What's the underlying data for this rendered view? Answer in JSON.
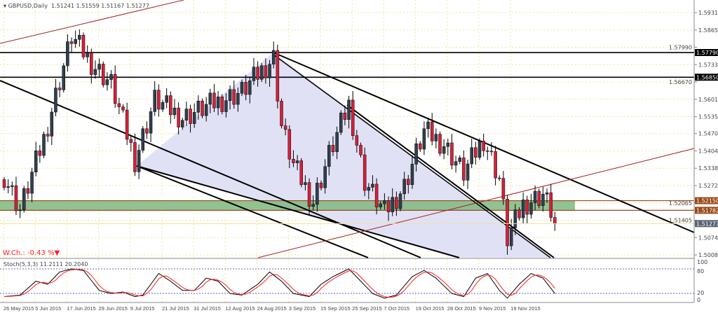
{
  "header": {
    "symbol": "GBPUSD,Daily",
    "ohlc": "1.51241 1.51559 1.51167 1.51277"
  },
  "weekly_change": {
    "label": "W.Ch.: -0.43 %",
    "arrow": "▼",
    "color": "#ff2020"
  },
  "stoch": {
    "label": "Stoch(5,3,3) 11.2111 20.2040",
    "levels": [
      "100",
      "80",
      "20",
      "0"
    ]
  },
  "colors": {
    "bull": "#2f3f4f",
    "bear": "#d8203a",
    "zone": "#7fb77f",
    "sr": "#9a4a1a",
    "channel": "#a02020",
    "shade": "#dcdcf4"
  },
  "chart_data": {
    "type": "candlestick",
    "title": "GBPUSD,Daily",
    "ylim": [
      1.498,
      1.598
    ],
    "price_ticks": [
      "1.59310",
      "1.58650",
      "1.57990",
      "1.57330",
      "1.56670",
      "1.56010",
      "1.55350",
      "1.54705",
      "1.54045",
      "1.53385",
      "1.52725",
      "1.52065",
      "1.51405",
      "1.50745",
      "1.50085"
    ],
    "date_ticks": [
      "26 May 2015",
      "5 Jun 2015",
      "17 Jun 2015",
      "29 Jun 2015",
      "9 Jul 2015",
      "21 Jul 2015",
      "31 Jul 2015",
      "12 Aug 2015",
      "24 Aug 2015",
      "3 Sep 2015",
      "15 Sep 2015",
      "25 Sep 2015",
      "7 Oct 2015",
      "19 Oct 2015",
      "28 Oct 2015",
      "9 Nov 2015",
      "19 Nov 2015"
    ],
    "bar_count": 140,
    "close_keypoints": [
      [
        0,
        1.531
      ],
      [
        4,
        1.518
      ],
      [
        10,
        1.545
      ],
      [
        17,
        1.584
      ],
      [
        22,
        1.574
      ],
      [
        27,
        1.566
      ],
      [
        33,
        1.537
      ],
      [
        38,
        1.56
      ],
      [
        45,
        1.553
      ],
      [
        52,
        1.558
      ],
      [
        60,
        1.563
      ],
      [
        68,
        1.576
      ],
      [
        70,
        1.55
      ],
      [
        73,
        1.535
      ],
      [
        78,
        1.521
      ],
      [
        82,
        1.539
      ],
      [
        87,
        1.558
      ],
      [
        91,
        1.529
      ],
      [
        96,
        1.517
      ],
      [
        101,
        1.527
      ],
      [
        106,
        1.548
      ],
      [
        111,
        1.543
      ],
      [
        116,
        1.532
      ],
      [
        121,
        1.545
      ],
      [
        125,
        1.53
      ],
      [
        127,
        1.507
      ],
      [
        131,
        1.52
      ],
      [
        136,
        1.524
      ],
      [
        138,
        1.5178
      ],
      [
        139,
        1.51277
      ]
    ],
    "horizontal_levels": [
      {
        "price": 1.5779,
        "label": "1.57790",
        "color": "#000000"
      },
      {
        "price": 1.5685,
        "label": "1.56850",
        "color": "#000000"
      },
      {
        "price": 1.5215,
        "label": "1.52150",
        "color": "#9a4a1a"
      },
      {
        "price": 1.51782,
        "label": "1.51782",
        "color": "#9a4a1a"
      }
    ],
    "current_price": {
      "price": 1.51277,
      "label": "1.51277"
    },
    "stoch_k_keypoints": [
      [
        0,
        10
      ],
      [
        4,
        15
      ],
      [
        8,
        60
      ],
      [
        11,
        50
      ],
      [
        14,
        90
      ],
      [
        17,
        100
      ],
      [
        20,
        95
      ],
      [
        24,
        30
      ],
      [
        27,
        20
      ],
      [
        30,
        25
      ],
      [
        33,
        10
      ],
      [
        35,
        15
      ],
      [
        39,
        85
      ],
      [
        42,
        60
      ],
      [
        45,
        30
      ],
      [
        48,
        30
      ],
      [
        51,
        70
      ],
      [
        54,
        60
      ],
      [
        57,
        20
      ],
      [
        60,
        15
      ],
      [
        64,
        50
      ],
      [
        67,
        90
      ],
      [
        70,
        60
      ],
      [
        73,
        20
      ],
      [
        77,
        10
      ],
      [
        80,
        50
      ],
      [
        83,
        75
      ],
      [
        87,
        100
      ],
      [
        90,
        60
      ],
      [
        93,
        20
      ],
      [
        96,
        5
      ],
      [
        99,
        15
      ],
      [
        103,
        75
      ],
      [
        106,
        95
      ],
      [
        109,
        70
      ],
      [
        113,
        20
      ],
      [
        116,
        10
      ],
      [
        119,
        70
      ],
      [
        122,
        85
      ],
      [
        125,
        30
      ],
      [
        127,
        5
      ],
      [
        130,
        50
      ],
      [
        133,
        85
      ],
      [
        136,
        70
      ],
      [
        139,
        20
      ]
    ]
  }
}
